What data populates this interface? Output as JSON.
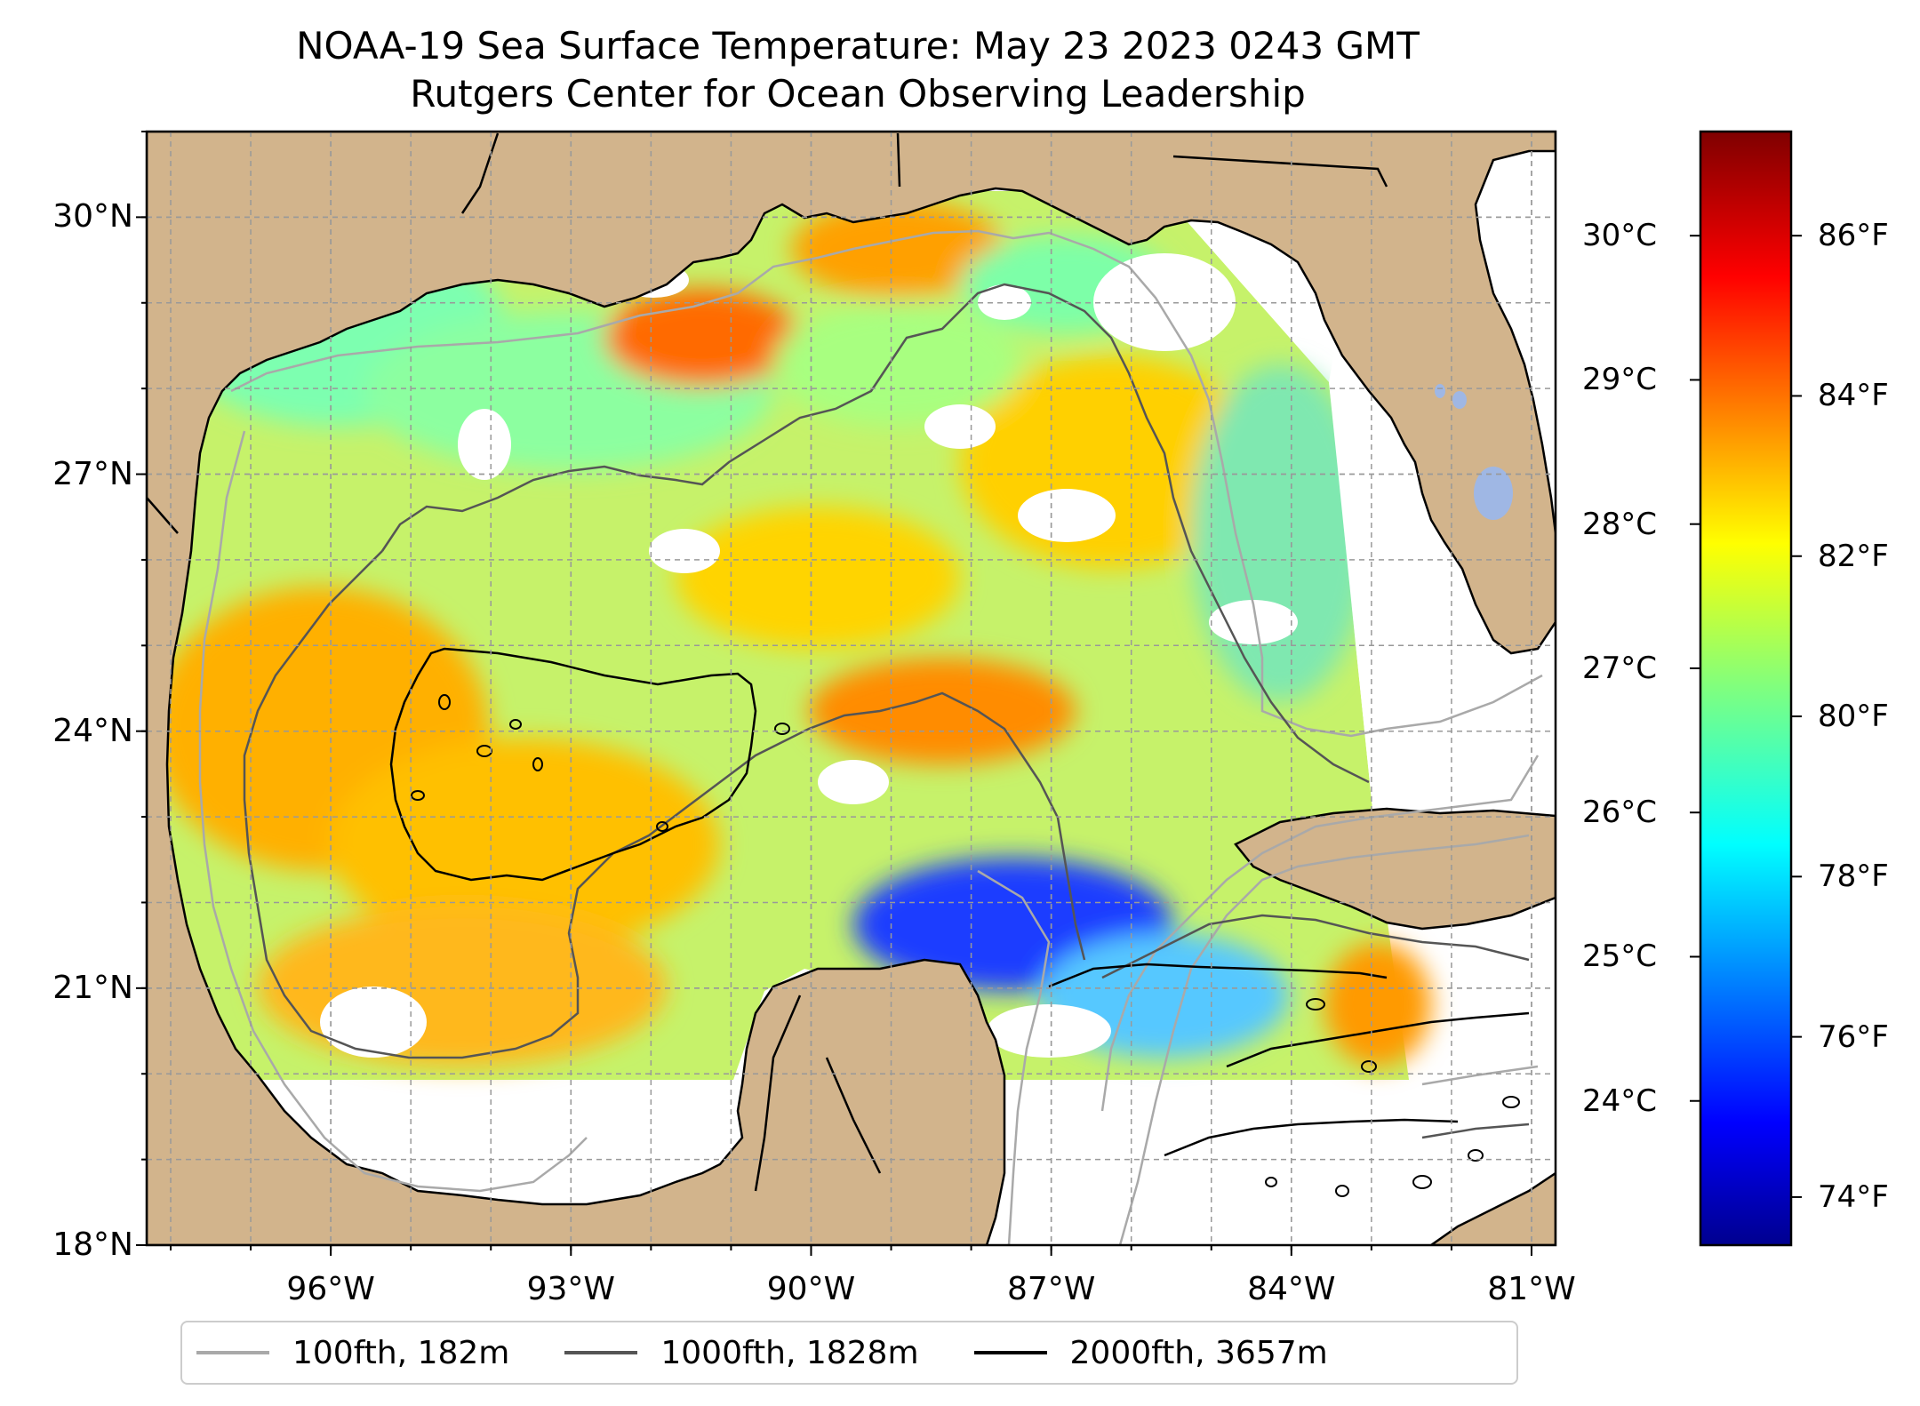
{
  "title": {
    "line1": "NOAA-19 Sea Surface Temperature: May 23 2023 0243 GMT",
    "line2": "Rutgers Center for Ocean Observing Leadership"
  },
  "map": {
    "extent": {
      "lon_min": -98.3,
      "lon_max": -80.7,
      "lat_min": 18,
      "lat_max": 31
    },
    "lon_ticks": [
      {
        "value": -96,
        "label": "96°W"
      },
      {
        "value": -93,
        "label": "93°W"
      },
      {
        "value": -90,
        "label": "90°W"
      },
      {
        "value": -87,
        "label": "87°W"
      },
      {
        "value": -84,
        "label": "84°W"
      },
      {
        "value": -81,
        "label": "81°W"
      }
    ],
    "lat_ticks": [
      {
        "value": 30,
        "label": "30°N"
      },
      {
        "value": 27,
        "label": "27°N"
      },
      {
        "value": 24,
        "label": "24°N"
      },
      {
        "value": 21,
        "label": "21°N"
      },
      {
        "value": 18,
        "label": "18°N"
      }
    ],
    "land_color": "#d2b48c",
    "water_color": "#ffffff",
    "grid": true
  },
  "colorbar": {
    "colormap": "jet",
    "range_f": [
      73.4,
      87.3
    ],
    "celsius_ticks": [
      {
        "value": 30,
        "label": "30°C"
      },
      {
        "value": 29,
        "label": "29°C"
      },
      {
        "value": 28,
        "label": "28°C"
      },
      {
        "value": 27,
        "label": "27°C"
      },
      {
        "value": 26,
        "label": "26°C"
      },
      {
        "value": 25,
        "label": "25°C"
      },
      {
        "value": 24,
        "label": "24°C"
      }
    ],
    "fahrenheit_ticks": [
      {
        "value": 86,
        "label": "86°F"
      },
      {
        "value": 84,
        "label": "84°F"
      },
      {
        "value": 82,
        "label": "82°F"
      },
      {
        "value": 80,
        "label": "80°F"
      },
      {
        "value": 78,
        "label": "78°F"
      },
      {
        "value": 76,
        "label": "76°F"
      },
      {
        "value": 74,
        "label": "74°F"
      }
    ]
  },
  "legend": {
    "items": [
      {
        "label": "100fth, 182m",
        "color": "#a9a9a9"
      },
      {
        "label": "1000fth, 1828m",
        "color": "#555555"
      },
      {
        "label": "2000fth, 3657m",
        "color": "#000000"
      }
    ]
  }
}
